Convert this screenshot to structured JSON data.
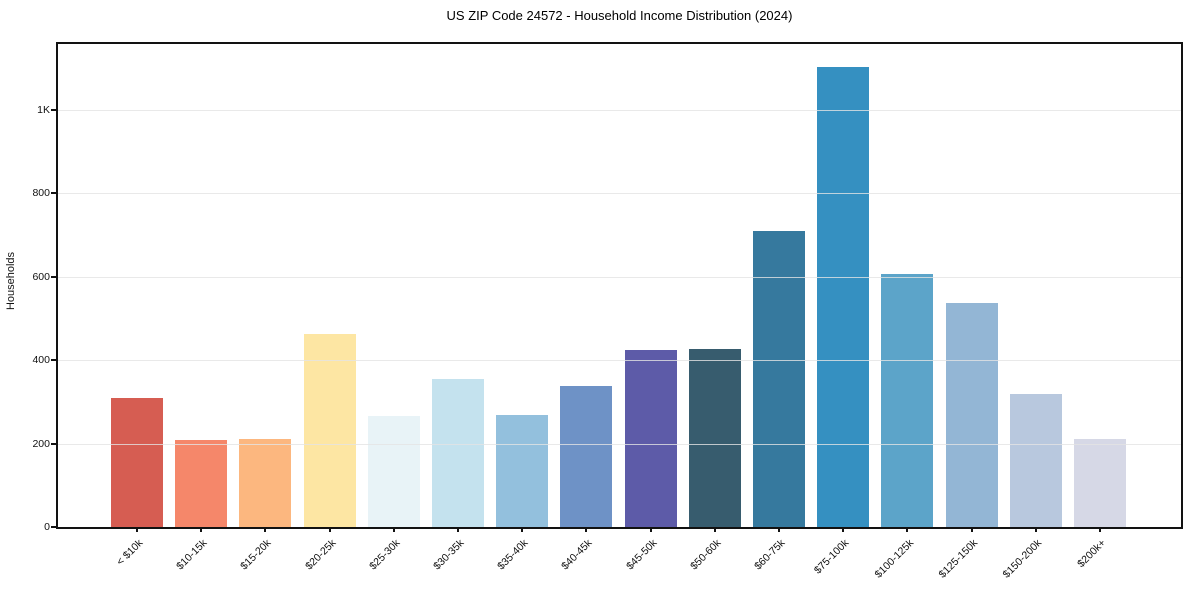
{
  "title": "US ZIP Code 24572 - Household Income Distribution (2024)",
  "chart_data": {
    "type": "bar",
    "title": "US ZIP Code 24572 - Household Income Distribution (2024)",
    "xlabel": "",
    "ylabel": "Households",
    "categories": [
      "< $10k",
      "$10-15k",
      "$15-20k",
      "$20-25k",
      "$25-30k",
      "$30-35k",
      "$35-40k",
      "$40-45k",
      "$45-50k",
      "$50-60k",
      "$60-75k",
      "$75-100k",
      "$100-125k",
      "$125-150k",
      "$150-200k",
      "$200k+"
    ],
    "values": [
      310,
      209,
      212,
      462,
      266,
      355,
      268,
      337,
      425,
      428,
      710,
      1102,
      606,
      536,
      320,
      212
    ],
    "bar_colors": [
      "#d65d52",
      "#f5876a",
      "#fcb77f",
      "#fde6a3",
      "#e8f3f7",
      "#c4e2ee",
      "#93c0dd",
      "#6e92c6",
      "#5d5ba8",
      "#375c6e",
      "#36799e",
      "#3590c1",
      "#5ca4c9",
      "#93b6d5",
      "#b8c8de",
      "#d6d8e6"
    ],
    "ylim": [
      0,
      1158
    ],
    "yticks": {
      "values": [
        0,
        200,
        400,
        600,
        800,
        1000
      ],
      "labels": [
        "0",
        "200",
        "400",
        "600",
        "800",
        "1K"
      ]
    },
    "grid": "horizontal",
    "gridline_color": "#e8e8e8",
    "legend": "none",
    "background": "#ffffff",
    "spine_color": "#121212"
  }
}
